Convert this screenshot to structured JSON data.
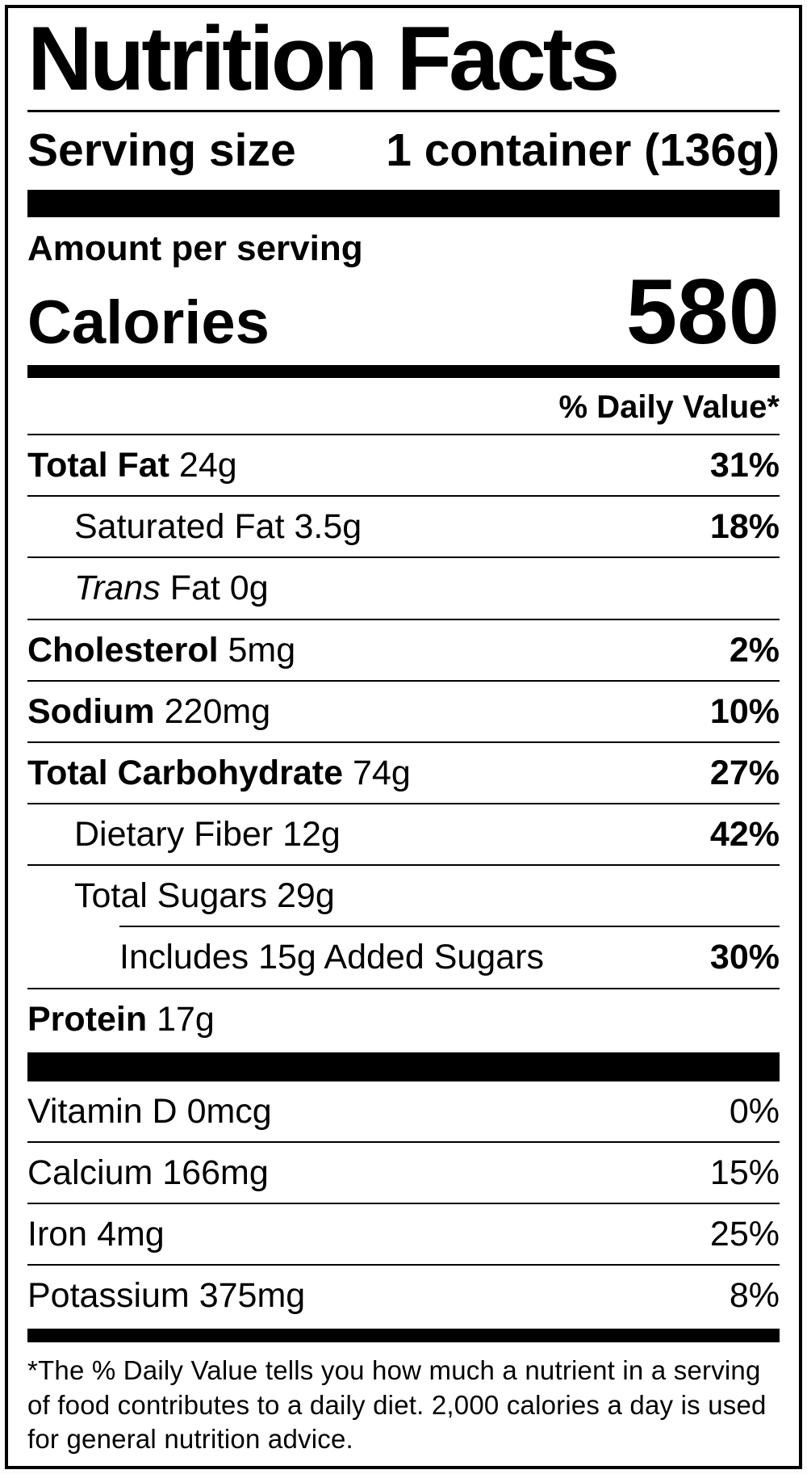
{
  "colors": {
    "text": "#000000",
    "background": "#ffffff"
  },
  "label": {
    "title": "Nutrition Facts",
    "serving_size_label": "Serving size",
    "serving_size_value": "1 container (136g)",
    "amount_per_serving": "Amount per serving",
    "calories_label": "Calories",
    "calories_value": "580",
    "daily_value_header": "% Daily Value*",
    "nutrients": [
      {
        "name": "Total Fat",
        "amount": "24g",
        "daily_value": "31%"
      },
      {
        "name": "Saturated Fat",
        "amount": "3.5g",
        "daily_value": "18%"
      },
      {
        "name_italic": "Trans",
        "name_rest": "Fat",
        "amount": "0g",
        "daily_value": ""
      },
      {
        "name": "Cholesterol",
        "amount": "5mg",
        "daily_value": "2%"
      },
      {
        "name": "Sodium",
        "amount": "220mg",
        "daily_value": "10%"
      },
      {
        "name": "Total Carbohydrate",
        "amount": "74g",
        "daily_value": "27%"
      },
      {
        "name": "Dietary Fiber",
        "amount": "12g",
        "daily_value": "42%"
      },
      {
        "name": "Total Sugars",
        "amount": "29g",
        "daily_value": ""
      },
      {
        "name": "Includes 15g Added Sugars",
        "amount": "",
        "daily_value": "30%"
      },
      {
        "name": "Protein",
        "amount": "17g",
        "daily_value": ""
      }
    ],
    "micronutrients": [
      {
        "name": "Vitamin D",
        "amount": "0mcg",
        "daily_value": "0%"
      },
      {
        "name": "Calcium",
        "amount": "166mg",
        "daily_value": "15%"
      },
      {
        "name": "Iron",
        "amount": "4mg",
        "daily_value": "25%"
      },
      {
        "name": "Potassium",
        "amount": "375mg",
        "daily_value": "8%"
      }
    ],
    "footnote": "*The % Daily Value tells you how much a nutrient in a serving of food contributes to a daily diet. 2,000 calories a day is used for general nutrition advice."
  }
}
